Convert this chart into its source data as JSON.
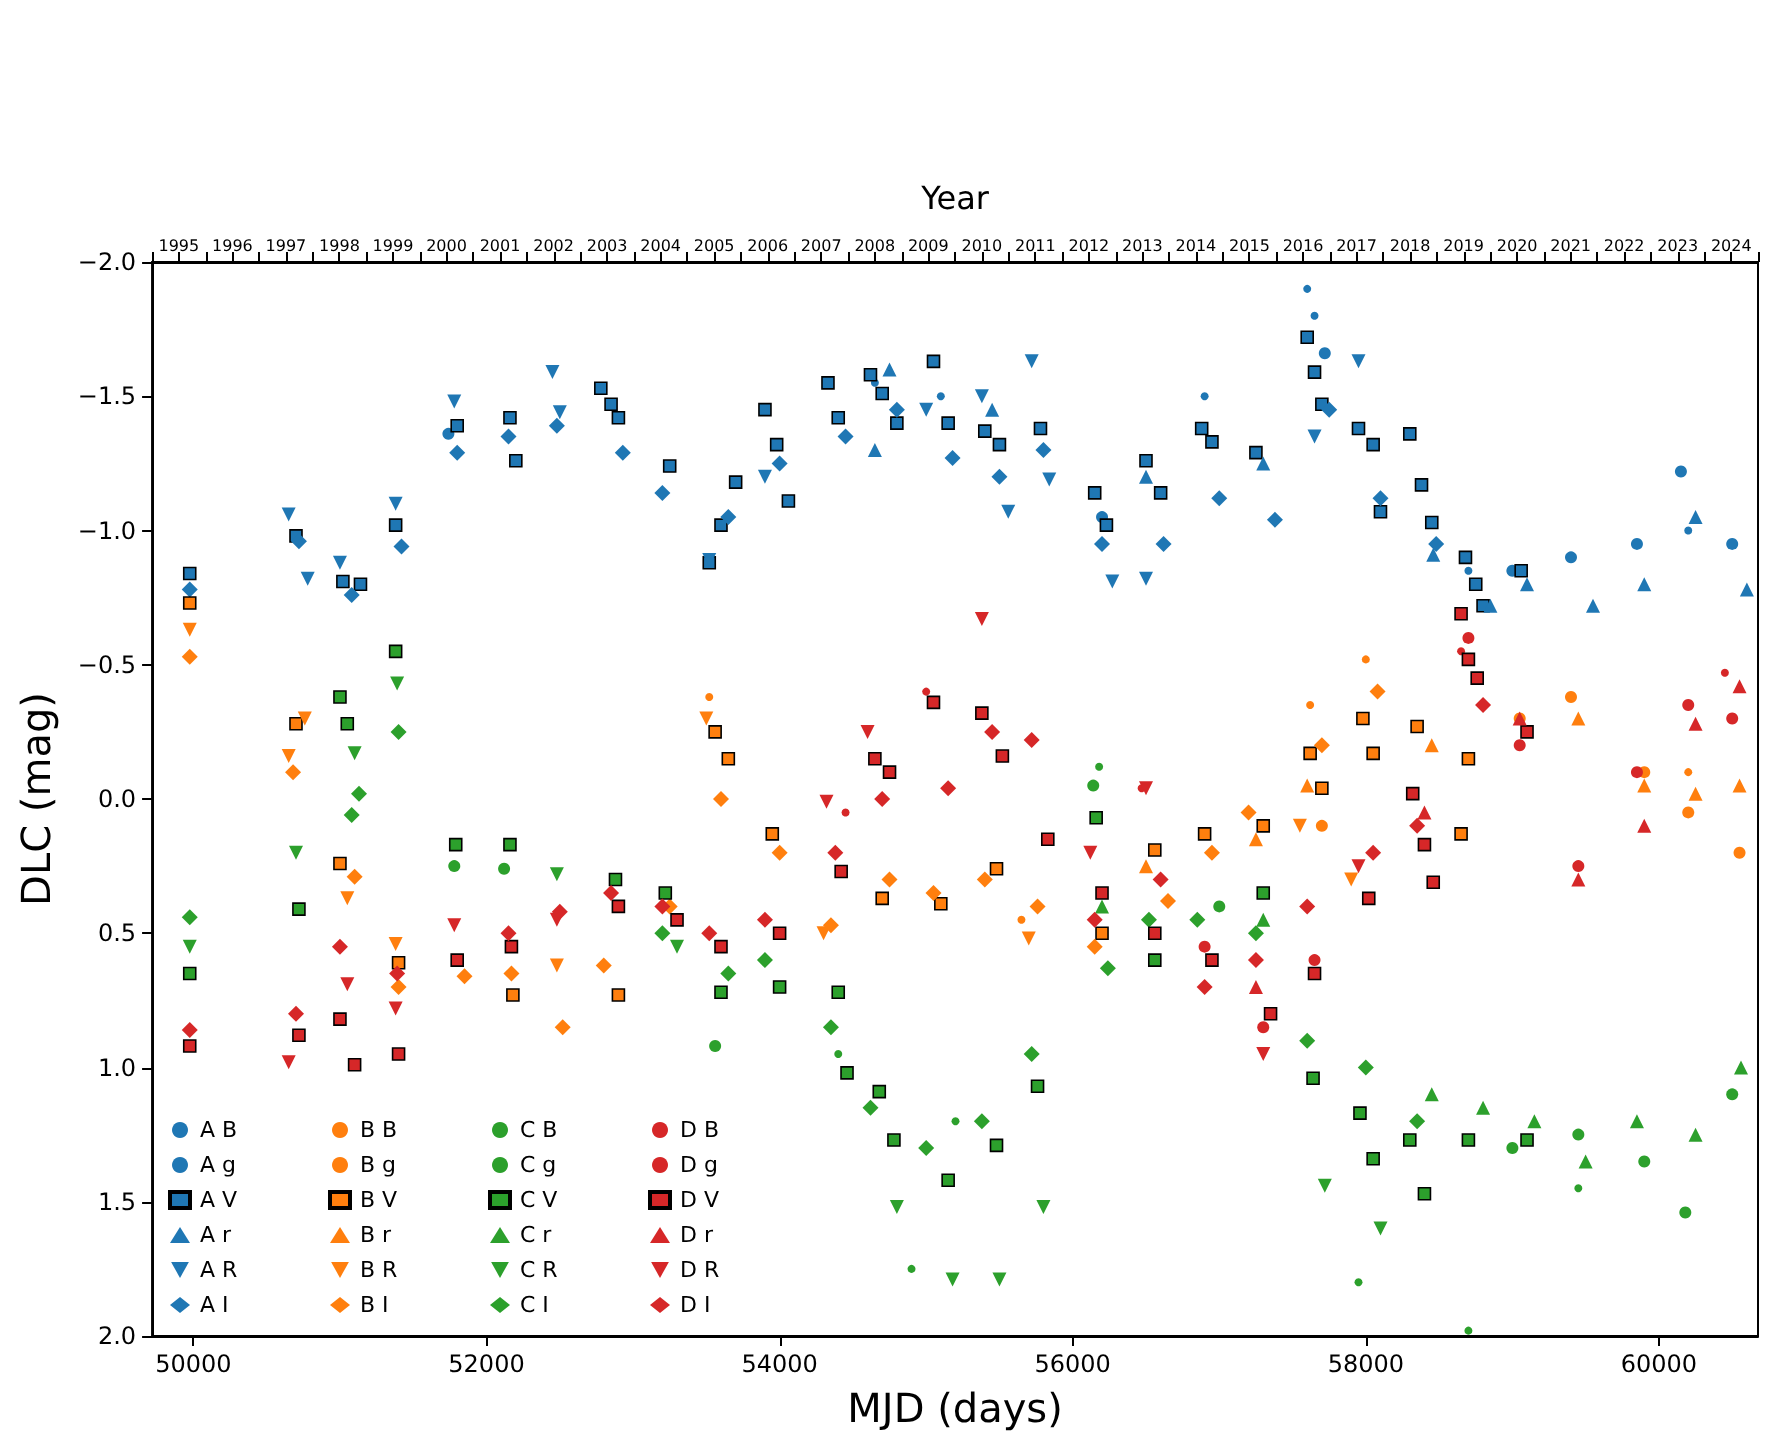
{
  "chart_data": {
    "type": "scatter",
    "xlabel": "MJD (days)",
    "ylabel": "DLC (mag)",
    "x2label": "Year",
    "xlim": [
      49718,
      60676
    ],
    "xticks": [
      50000,
      52000,
      54000,
      56000,
      58000,
      60000
    ],
    "ylim": [
      2.0,
      -2.0
    ],
    "yticks": [
      {
        "value": -2,
        "label": "−2.0"
      },
      {
        "value": -1.5,
        "label": "−1.5"
      },
      {
        "value": -1,
        "label": "−1.0"
      },
      {
        "value": -0.5,
        "label": "−0.5"
      },
      {
        "value": 0,
        "label": "0.0"
      },
      {
        "value": 0.5,
        "label": "0.5"
      },
      {
        "value": 1,
        "label": "1.0"
      },
      {
        "value": 1.5,
        "label": "1.5"
      },
      {
        "value": 2,
        "label": "2.0"
      }
    ],
    "x2lim": [
      1994.5,
      2024.5
    ],
    "x2ticks": [
      {
        "value": 1994.5,
        "label": null
      },
      {
        "value": 1995.5,
        "label": null
      },
      {
        "value": 1996.5,
        "label": null
      },
      {
        "value": 1997.5,
        "label": null
      },
      {
        "value": 1998.5,
        "label": null
      },
      {
        "value": 1999.5,
        "label": null
      },
      {
        "value": 2000.5,
        "label": null
      },
      {
        "value": 2001.5,
        "label": null
      },
      {
        "value": 2002.5,
        "label": null
      },
      {
        "value": 2003.5,
        "label": null
      },
      {
        "value": 2004.5,
        "label": null
      },
      {
        "value": 2005.5,
        "label": null
      },
      {
        "value": 2006.5,
        "label": null
      },
      {
        "value": 2007.5,
        "label": null
      },
      {
        "value": 2008.5,
        "label": null
      },
      {
        "value": 2009.5,
        "label": null
      },
      {
        "value": 2010.5,
        "label": null
      },
      {
        "value": 2011.5,
        "label": null
      },
      {
        "value": 2012.5,
        "label": null
      },
      {
        "value": 2013.5,
        "label": null
      },
      {
        "value": 2014.5,
        "label": null
      },
      {
        "value": 2015.5,
        "label": null
      },
      {
        "value": 2016.5,
        "label": null
      },
      {
        "value": 2017.5,
        "label": null
      },
      {
        "value": 2018.5,
        "label": null
      },
      {
        "value": 2019.5,
        "label": null
      },
      {
        "value": 2020.5,
        "label": null
      },
      {
        "value": 2021.5,
        "label": null
      },
      {
        "value": 2022.5,
        "label": null
      },
      {
        "value": 2023.5,
        "label": null
      },
      {
        "value": 2024.5,
        "label": null
      },
      1995,
      1996,
      1997,
      1998,
      1999,
      2000,
      2001,
      2002,
      2003,
      2004,
      2005,
      2006,
      2007,
      2008,
      2009,
      2010,
      2011,
      2012,
      2013,
      2014,
      2015,
      2016,
      2017,
      2018,
      2019,
      2020,
      2021,
      2022,
      2023,
      2024
    ],
    "grid": false,
    "legend": "bottom left",
    "series": [
      {
        "name": "A B",
        "color": "#1f77b4",
        "marker": "point",
        "x": [
          57600,
          57650,
          54650,
          55100,
          56900,
          58700,
          60200
        ],
        "values": [
          -1.9,
          -1.8,
          -1.55,
          -1.5,
          -1.5,
          -0.85,
          -1.0
        ]
      },
      {
        "name": "A g",
        "color": "#1f77b4",
        "marker": "circle",
        "x": [
          51740,
          60150,
          59000,
          59400,
          59850,
          60500,
          57720,
          56200
        ],
        "values": [
          -1.36,
          -1.22,
          -0.85,
          -0.9,
          -0.95,
          -0.95,
          -1.66,
          -1.05
        ]
      },
      {
        "name": "A V",
        "color": "#1f77b4",
        "marker": "square",
        "x": [
          49975,
          50700,
          51020,
          51140,
          51380,
          51800,
          52160,
          52200,
          52780,
          52850,
          52900,
          53250,
          53520,
          53600,
          53700,
          53900,
          53980,
          54060,
          54330,
          54400,
          54620,
          54700,
          54800,
          55050,
          55150,
          55400,
          55500,
          55780,
          56150,
          56230,
          56500,
          56600,
          56880,
          56950,
          57250,
          57600,
          57650,
          57700,
          57950,
          58050,
          58100,
          58300,
          58380,
          58450,
          58680,
          58750,
          58800,
          59060
        ],
        "values": [
          -0.84,
          -0.98,
          -0.81,
          -0.8,
          -1.02,
          -1.39,
          -1.42,
          -1.26,
          -1.53,
          -1.47,
          -1.42,
          -1.24,
          -0.88,
          -1.02,
          -1.18,
          -1.45,
          -1.32,
          -1.11,
          -1.55,
          -1.42,
          -1.58,
          -1.51,
          -1.4,
          -1.63,
          -1.4,
          -1.37,
          -1.32,
          -1.38,
          -1.14,
          -1.02,
          -1.26,
          -1.14,
          -1.38,
          -1.33,
          -1.29,
          -1.72,
          -1.59,
          -1.47,
          -1.38,
          -1.32,
          -1.07,
          -1.36,
          -1.17,
          -1.03,
          -0.9,
          -0.8,
          -0.72,
          -0.85
        ]
      },
      {
        "name": "A r",
        "color": "#1f77b4",
        "marker": "triangle",
        "x": [
          54650,
          54750,
          55450,
          56500,
          57300,
          58460,
          58850,
          59100,
          59550,
          59900,
          60250,
          60600
        ],
        "values": [
          -1.3,
          -1.6,
          -1.45,
          -1.2,
          -1.25,
          -0.91,
          -0.72,
          -0.8,
          -0.72,
          -0.8,
          -1.05,
          -0.78
        ]
      },
      {
        "name": "A R",
        "color": "#1f77b4",
        "marker": "triangle_down",
        "x": [
          50650,
          50780,
          51000,
          51380,
          51780,
          52450,
          52500,
          53520,
          53900,
          55000,
          55380,
          55560,
          55720,
          55840,
          56270,
          56500,
          57650,
          57950
        ],
        "values": [
          -1.06,
          -0.82,
          -0.88,
          -1.1,
          -1.48,
          -1.59,
          -1.44,
          -0.89,
          -1.2,
          -1.45,
          -1.5,
          -1.07,
          -1.63,
          -1.19,
          -0.81,
          -0.82,
          -1.35,
          -1.63
        ]
      },
      {
        "name": "A I",
        "color": "#1f77b4",
        "marker": "diamond",
        "x": [
          49975,
          50720,
          51080,
          51420,
          51800,
          52150,
          52480,
          52930,
          53200,
          53650,
          54000,
          54450,
          54800,
          55180,
          55500,
          55800,
          56200,
          56620,
          57000,
          57380,
          57750,
          58100,
          58480
        ],
        "values": [
          -0.78,
          -0.96,
          -0.76,
          -0.94,
          -1.29,
          -1.35,
          -1.39,
          -1.29,
          -1.14,
          -1.05,
          -1.25,
          -1.35,
          -1.45,
          -1.27,
          -1.2,
          -1.3,
          -0.95,
          -0.95,
          -1.12,
          -1.04,
          -1.45,
          -1.12,
          -0.95
        ]
      },
      {
        "name": "B B",
        "color": "#ff7f0e",
        "marker": "point",
        "x": [
          53520,
          57620,
          58000,
          55650,
          60200
        ],
        "values": [
          -0.38,
          -0.35,
          -0.52,
          0.45,
          -0.1
        ]
      },
      {
        "name": "B g",
        "color": "#ff7f0e",
        "marker": "circle",
        "x": [
          59050,
          59400,
          59900,
          60200,
          60550,
          57700
        ],
        "values": [
          -0.3,
          -0.38,
          -0.1,
          0.05,
          0.2,
          0.1
        ]
      },
      {
        "name": "B V",
        "color": "#ff7f0e",
        "marker": "square",
        "x": [
          49975,
          50700,
          51000,
          51400,
          52180,
          52900,
          53560,
          53650,
          53950,
          54700,
          55100,
          55480,
          56200,
          56560,
          56900,
          57300,
          57620,
          57700,
          57980,
          58050,
          58350,
          58700,
          58650
        ],
        "values": [
          -0.73,
          -0.28,
          0.24,
          0.61,
          0.73,
          0.73,
          -0.25,
          -0.15,
          0.13,
          0.37,
          0.39,
          0.26,
          0.5,
          0.19,
          0.13,
          0.1,
          -0.17,
          -0.04,
          -0.3,
          -0.17,
          -0.27,
          -0.15,
          0.13
        ]
      },
      {
        "name": "B r",
        "color": "#ff7f0e",
        "marker": "triangle",
        "x": [
          56500,
          57250,
          58450,
          59450,
          59900,
          60250,
          60550,
          57600
        ],
        "values": [
          0.25,
          0.15,
          -0.2,
          -0.3,
          -0.05,
          -0.02,
          -0.05,
          -0.05
        ]
      },
      {
        "name": "B R",
        "color": "#ff7f0e",
        "marker": "triangle_down",
        "x": [
          49975,
          50650,
          50760,
          51050,
          51380,
          52480,
          53500,
          54300,
          55700,
          57550,
          57900
        ],
        "values": [
          -0.63,
          -0.16,
          -0.3,
          0.37,
          0.54,
          0.62,
          -0.3,
          0.5,
          0.52,
          0.1,
          0.3
        ]
      },
      {
        "name": "B I",
        "color": "#ff7f0e",
        "marker": "diamond",
        "x": [
          49975,
          50680,
          51100,
          51400,
          51850,
          52170,
          52520,
          52800,
          53250,
          53600,
          54000,
          54350,
          54750,
          55050,
          55400,
          55760,
          56150,
          56650,
          56950,
          57200,
          57700,
          58080
        ],
        "values": [
          -0.53,
          -0.1,
          0.29,
          0.7,
          0.66,
          0.65,
          0.85,
          0.62,
          0.4,
          0.0,
          0.2,
          0.47,
          0.3,
          0.35,
          0.3,
          0.4,
          0.55,
          0.38,
          0.2,
          0.05,
          -0.2,
          -0.4
        ]
      },
      {
        "name": "C B",
        "color": "#2ca02c",
        "marker": "point",
        "x": [
          54400,
          55200,
          56180,
          57950,
          58700,
          59450,
          54900
        ],
        "values": [
          0.95,
          1.2,
          -0.12,
          1.8,
          1.98,
          1.45,
          1.75
        ]
      },
      {
        "name": "C g",
        "color": "#2ca02c",
        "marker": "circle",
        "x": [
          51780,
          52120,
          53560,
          56140,
          59000,
          59450,
          59900,
          60180,
          60500,
          57000
        ],
        "values": [
          0.25,
          0.26,
          0.92,
          -0.05,
          1.3,
          1.25,
          1.35,
          1.54,
          1.1,
          0.4
        ]
      },
      {
        "name": "C V",
        "color": "#2ca02c",
        "marker": "square",
        "x": [
          49975,
          50720,
          51000,
          51050,
          51380,
          51790,
          52160,
          52880,
          53220,
          53600,
          54000,
          54400,
          54460,
          54680,
          54780,
          55150,
          55480,
          55760,
          56160,
          56560,
          57300,
          57640,
          57960,
          58050,
          58300,
          58400,
          58700,
          59100
        ],
        "values": [
          0.65,
          0.41,
          -0.38,
          -0.28,
          -0.55,
          0.17,
          0.17,
          0.3,
          0.35,
          0.72,
          0.7,
          0.72,
          1.02,
          1.09,
          1.27,
          1.42,
          1.29,
          1.07,
          0.07,
          0.6,
          0.35,
          1.04,
          1.17,
          1.34,
          1.27,
          1.47,
          1.27,
          1.27
        ]
      },
      {
        "name": "C r",
        "color": "#2ca02c",
        "marker": "triangle",
        "x": [
          56200,
          57300,
          58450,
          59150,
          59500,
          59850,
          60250,
          60560,
          58800
        ],
        "values": [
          0.4,
          0.45,
          1.1,
          1.2,
          1.35,
          1.2,
          1.25,
          1.0,
          1.15
        ]
      },
      {
        "name": "C R",
        "color": "#2ca02c",
        "marker": "triangle_down",
        "x": [
          49975,
          50700,
          51100,
          51390,
          52480,
          53300,
          54800,
          55180,
          55500,
          55800,
          57720,
          58100
        ],
        "values": [
          0.55,
          0.2,
          -0.17,
          -0.43,
          0.28,
          0.55,
          1.52,
          1.79,
          1.79,
          1.52,
          1.44,
          1.6
        ]
      },
      {
        "name": "C I",
        "color": "#2ca02c",
        "marker": "diamond",
        "x": [
          49975,
          51080,
          51130,
          51400,
          53200,
          53650,
          53900,
          54350,
          54620,
          55000,
          55380,
          55720,
          56240,
          56520,
          56850,
          57250,
          57600,
          58000,
          58350
        ],
        "values": [
          0.44,
          0.06,
          -0.02,
          -0.25,
          0.5,
          0.65,
          0.6,
          0.85,
          1.15,
          1.3,
          1.2,
          0.95,
          0.63,
          0.45,
          0.45,
          0.5,
          0.9,
          1.0,
          1.2
        ]
      },
      {
        "name": "D B",
        "color": "#d62728",
        "marker": "point",
        "x": [
          54450,
          55000,
          56470,
          58650,
          60450
        ],
        "values": [
          0.05,
          -0.4,
          -0.04,
          -0.55,
          -0.47
        ]
      },
      {
        "name": "D g",
        "color": "#d62728",
        "marker": "circle",
        "x": [
          56900,
          57300,
          57650,
          58700,
          59050,
          59450,
          59850,
          60200,
          60500
        ],
        "values": [
          0.55,
          0.85,
          0.6,
          -0.6,
          -0.2,
          0.25,
          -0.1,
          -0.35,
          -0.3
        ]
      },
      {
        "name": "D V",
        "color": "#d62728",
        "marker": "square",
        "x": [
          49975,
          50720,
          51000,
          51100,
          51400,
          51800,
          52170,
          52900,
          53300,
          53600,
          54000,
          54420,
          54650,
          54750,
          55050,
          55380,
          55520,
          55830,
          56200,
          56560,
          56950,
          57350,
          57650,
          58020,
          58320,
          58400,
          58460,
          58650,
          58700,
          58760,
          59100
        ],
        "values": [
          0.92,
          0.88,
          0.82,
          0.99,
          0.95,
          0.6,
          0.55,
          0.4,
          0.45,
          0.55,
          0.5,
          0.27,
          -0.15,
          -0.1,
          -0.36,
          -0.32,
          -0.16,
          0.15,
          0.35,
          0.5,
          0.6,
          0.8,
          0.65,
          0.37,
          -0.02,
          0.17,
          0.31,
          -0.69,
          -0.52,
          -0.45,
          -0.25
        ]
      },
      {
        "name": "D r",
        "color": "#d62728",
        "marker": "triangle",
        "x": [
          57250,
          59050,
          59450,
          59900,
          60250,
          60550,
          58400
        ],
        "values": [
          0.7,
          -0.3,
          0.3,
          0.1,
          -0.28,
          -0.42,
          0.05
        ]
      },
      {
        "name": "D R",
        "color": "#d62728",
        "marker": "triangle_down",
        "x": [
          50650,
          51050,
          51380,
          51780,
          52480,
          54320,
          54600,
          55380,
          56120,
          56500,
          57300,
          57950
        ],
        "values": [
          0.98,
          0.69,
          0.78,
          0.47,
          0.45,
          0.01,
          -0.25,
          -0.67,
          0.2,
          -0.04,
          0.95,
          0.25
        ]
      },
      {
        "name": "D I",
        "color": "#d62728",
        "marker": "diamond",
        "x": [
          49975,
          50700,
          51000,
          51390,
          52150,
          52500,
          52850,
          53200,
          53520,
          53900,
          54380,
          54700,
          55150,
          55450,
          55720,
          56150,
          56600,
          56900,
          57250,
          57600,
          58050,
          58350,
          58800
        ],
        "values": [
          0.86,
          0.8,
          0.55,
          0.65,
          0.5,
          0.42,
          0.35,
          0.4,
          0.5,
          0.45,
          0.2,
          0.0,
          -0.04,
          -0.25,
          -0.22,
          0.45,
          0.3,
          0.7,
          0.6,
          0.4,
          0.2,
          0.1,
          -0.35
        ]
      }
    ]
  }
}
